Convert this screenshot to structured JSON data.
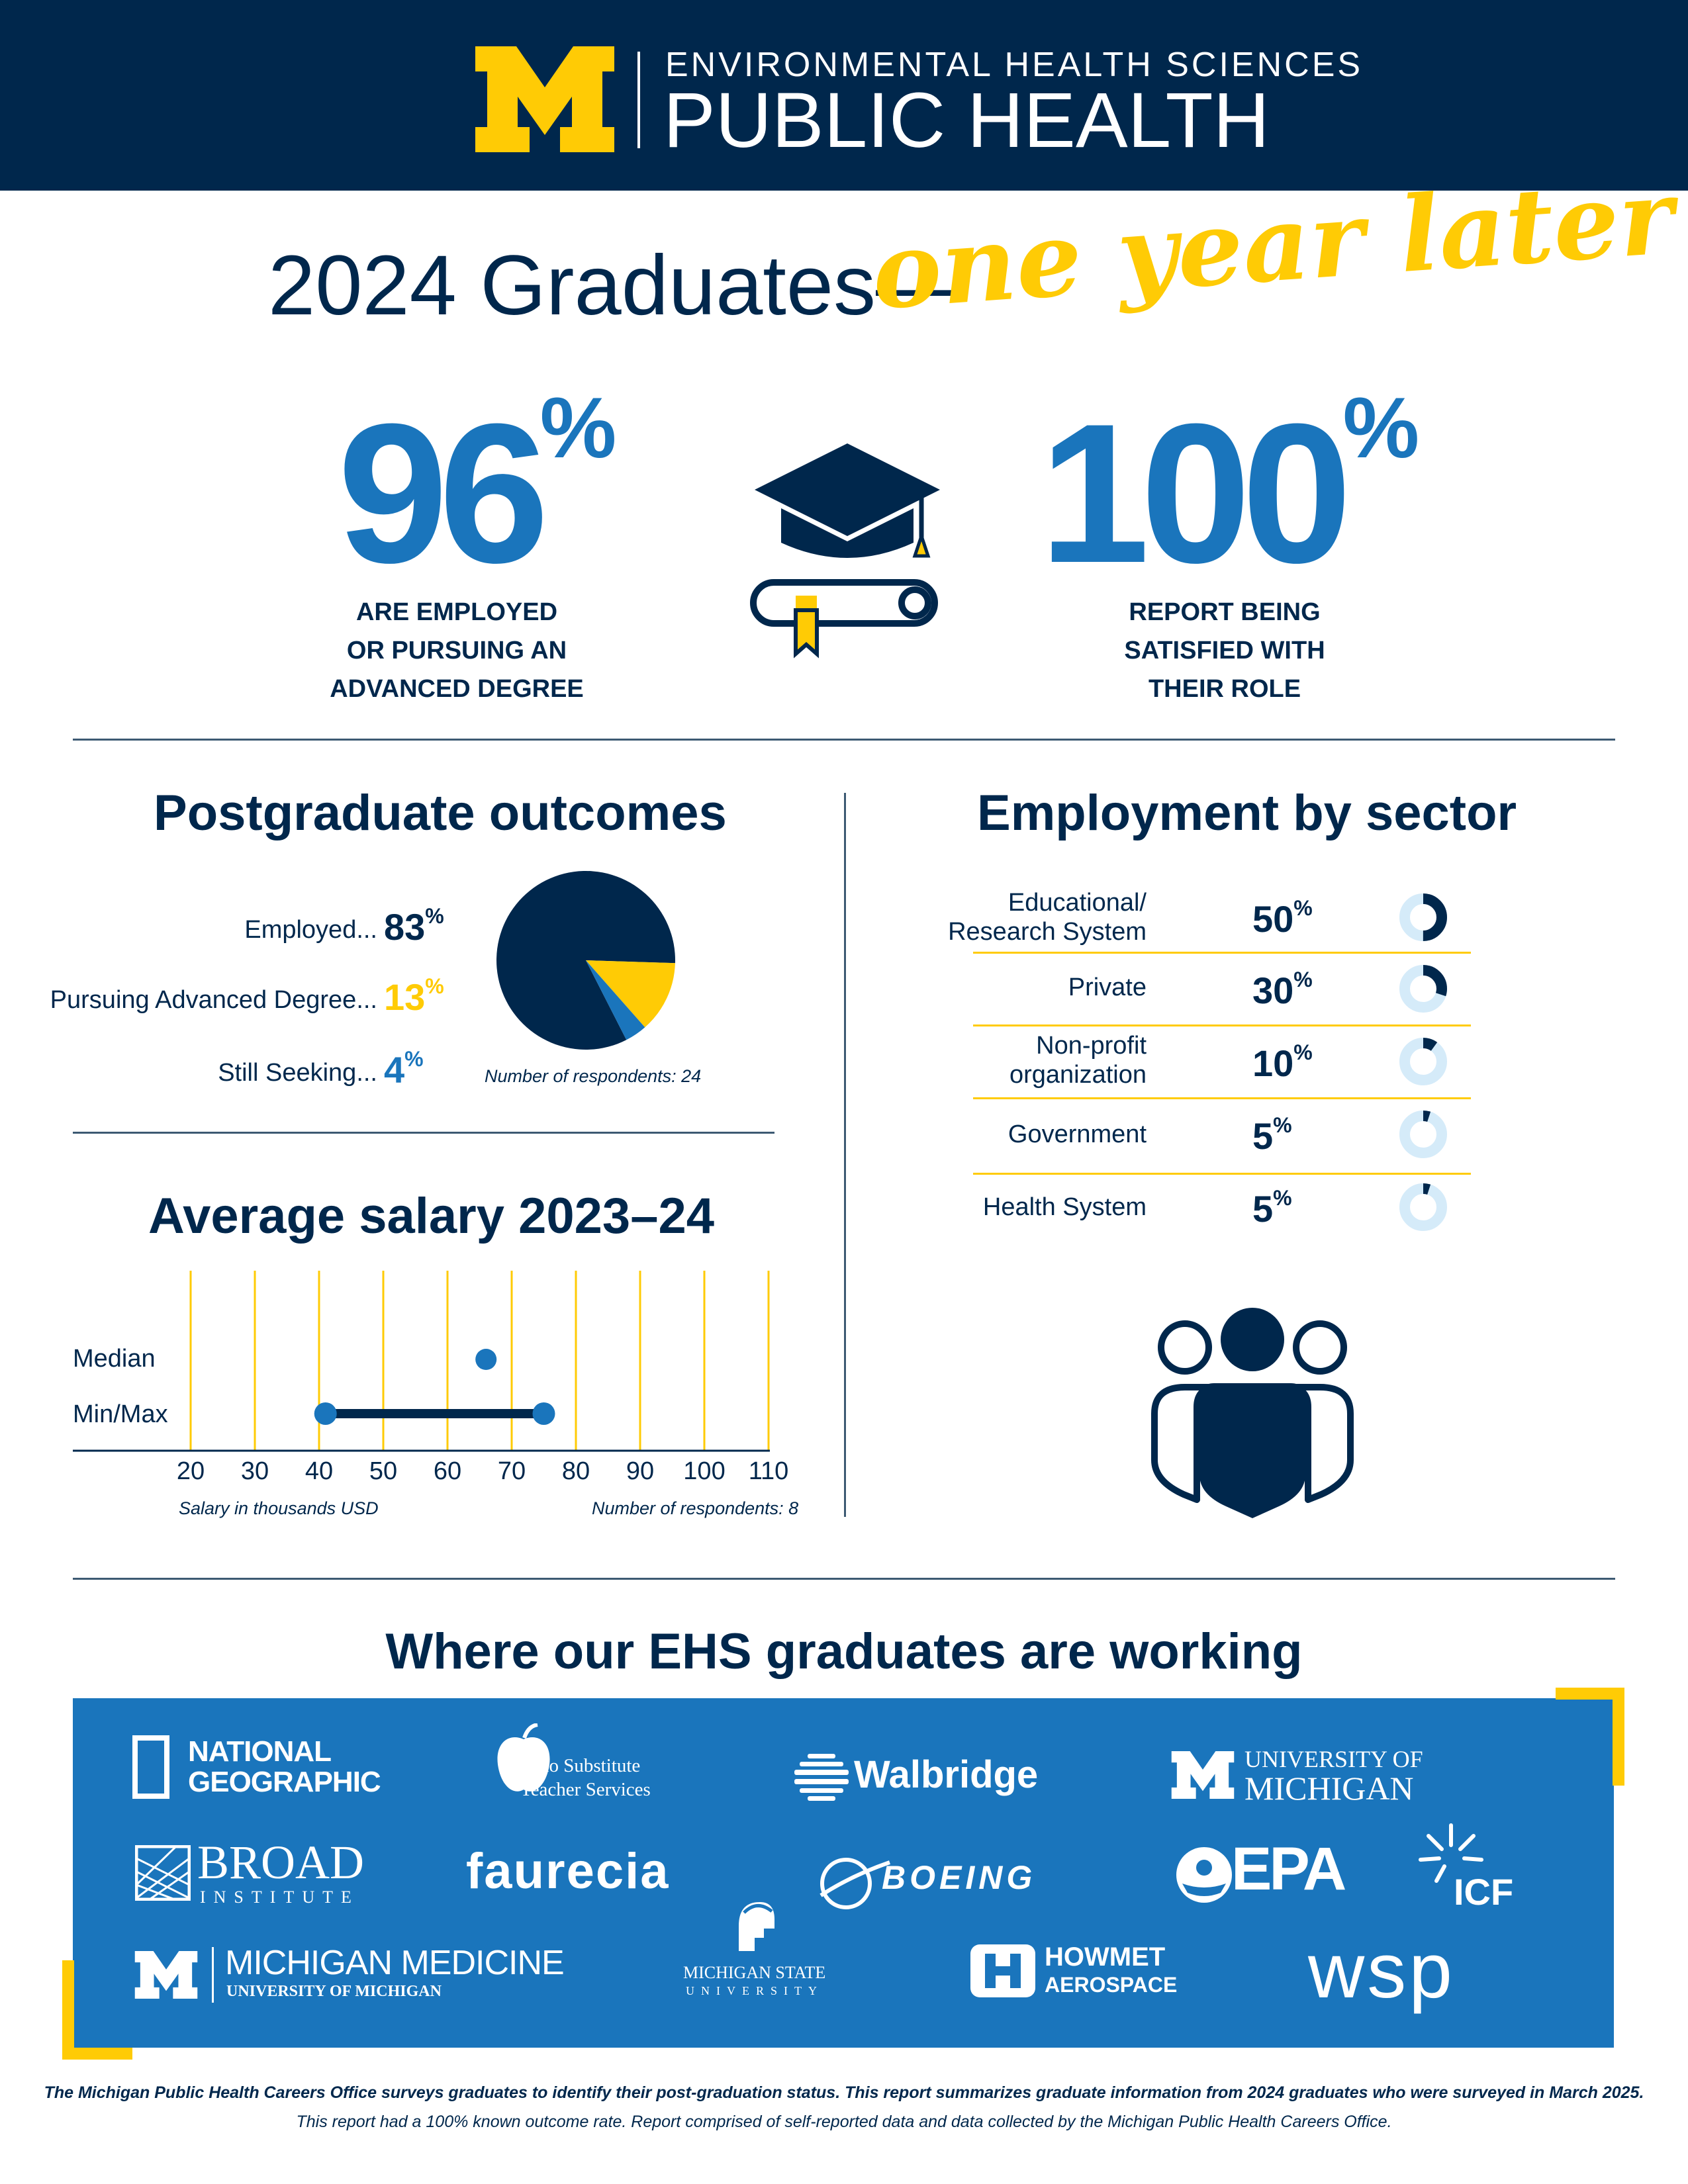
{
  "header": {
    "subtitle": "ENVIRONMENTAL HEALTH SCIENCES",
    "title": "PUBLIC HEALTH"
  },
  "title": {
    "main": "2024 Graduates—",
    "script": "one year later"
  },
  "stats": [
    {
      "value": "96",
      "unit": "%",
      "label_lines": [
        "ARE EMPLOYED",
        "OR PURSUING AN",
        "ADVANCED DEGREE"
      ]
    },
    {
      "value": "100",
      "unit": "%",
      "label_lines": [
        "REPORT BEING",
        "SATISFIED WITH",
        "THEIR ROLE"
      ]
    }
  ],
  "postgrad": {
    "title": "Postgraduate outcomes",
    "note": "Number of respondents: 24"
  },
  "sector": {
    "title": "Employment by sector"
  },
  "salary": {
    "title": "Average salary 2023–24",
    "note_left": "Salary in thousands USD",
    "note_right": "Number of respondents: 8"
  },
  "chart_data": [
    {
      "type": "pie",
      "title": "Postgraduate outcomes",
      "categories": [
        "Employed",
        "Pursuing Advanced Degree",
        "Still Seeking"
      ],
      "labels": [
        "Employed...",
        "Pursuing Advanced Degree...",
        "Still Seeking..."
      ],
      "values": [
        83,
        13,
        4
      ],
      "unit": "%",
      "colors": [
        "#00274c",
        "#ffcb05",
        "#1a75bc"
      ],
      "annotation": "Number of respondents: 24"
    },
    {
      "type": "bar",
      "title": "Employment by sector",
      "categories": [
        "Educational/ Research System",
        "Private",
        "Non-profit organization",
        "Government",
        "Health System"
      ],
      "label_lines": [
        [
          "Educational/",
          "Research System"
        ],
        [
          "Private"
        ],
        [
          "Non-profit",
          "organization"
        ],
        [
          "Government"
        ],
        [
          "Health System"
        ]
      ],
      "values": [
        50,
        30,
        10,
        5,
        5
      ],
      "unit": "%",
      "colors": {
        "fill": "#00274c",
        "track": "#d5ebf9"
      }
    },
    {
      "type": "scatter",
      "title": "Average salary 2023–24",
      "xlabel": "Salary in thousands USD",
      "xlim": [
        15,
        110
      ],
      "xticks": [
        20,
        30,
        40,
        50,
        60,
        70,
        80,
        90,
        100,
        110
      ],
      "rows": [
        {
          "name": "Median",
          "values": [
            66
          ]
        },
        {
          "name": "Min/Max",
          "values": [
            41,
            75
          ]
        }
      ],
      "colors": {
        "point": "#1a75bc",
        "range": "#00274c",
        "grid": "#ffcb05"
      },
      "annotation": "Number of respondents: 8"
    }
  ],
  "employers": {
    "title": "Where our EHS graduates are working",
    "logos": {
      "natgeo_1": "NATIONAL",
      "natgeo_2": "GEOGRAPHIC",
      "ohio_1": "Ohio Substitute",
      "ohio_2": "Teacher Services",
      "walbridge": "Walbridge",
      "umich_1": "UNIVERSITY OF",
      "umich_2": "MICHIGAN",
      "broad_1": "BROAD",
      "broad_2": "INSTITUTE",
      "faurecia": "faurecia",
      "boeing": "BOEING",
      "epa": "EPA",
      "icf": "ICF",
      "mm_1": "MICHIGAN MEDICINE",
      "mm_2": "UNIVERSITY OF MICHIGAN",
      "msu_1": "MICHIGAN STATE",
      "msu_2": "UNIVERSITY",
      "howmet_1": "HOWMET",
      "howmet_2": "AEROSPACE",
      "wsp": "wsp"
    }
  },
  "footer": {
    "line1": "The Michigan Public Health Careers Office surveys graduates to identify their post-graduation status. This report summarizes graduate information from 2024 graduates who were surveyed in March 2025.",
    "line2": "This report had a 100% known outcome rate. Report comprised of self-reported data and data collected by the Michigan Public Health Careers Office."
  },
  "colors": {
    "navy": "#00274c",
    "maize": "#ffcb05",
    "blue": "#1a75bc",
    "light_blue": "#d5ebf9"
  }
}
